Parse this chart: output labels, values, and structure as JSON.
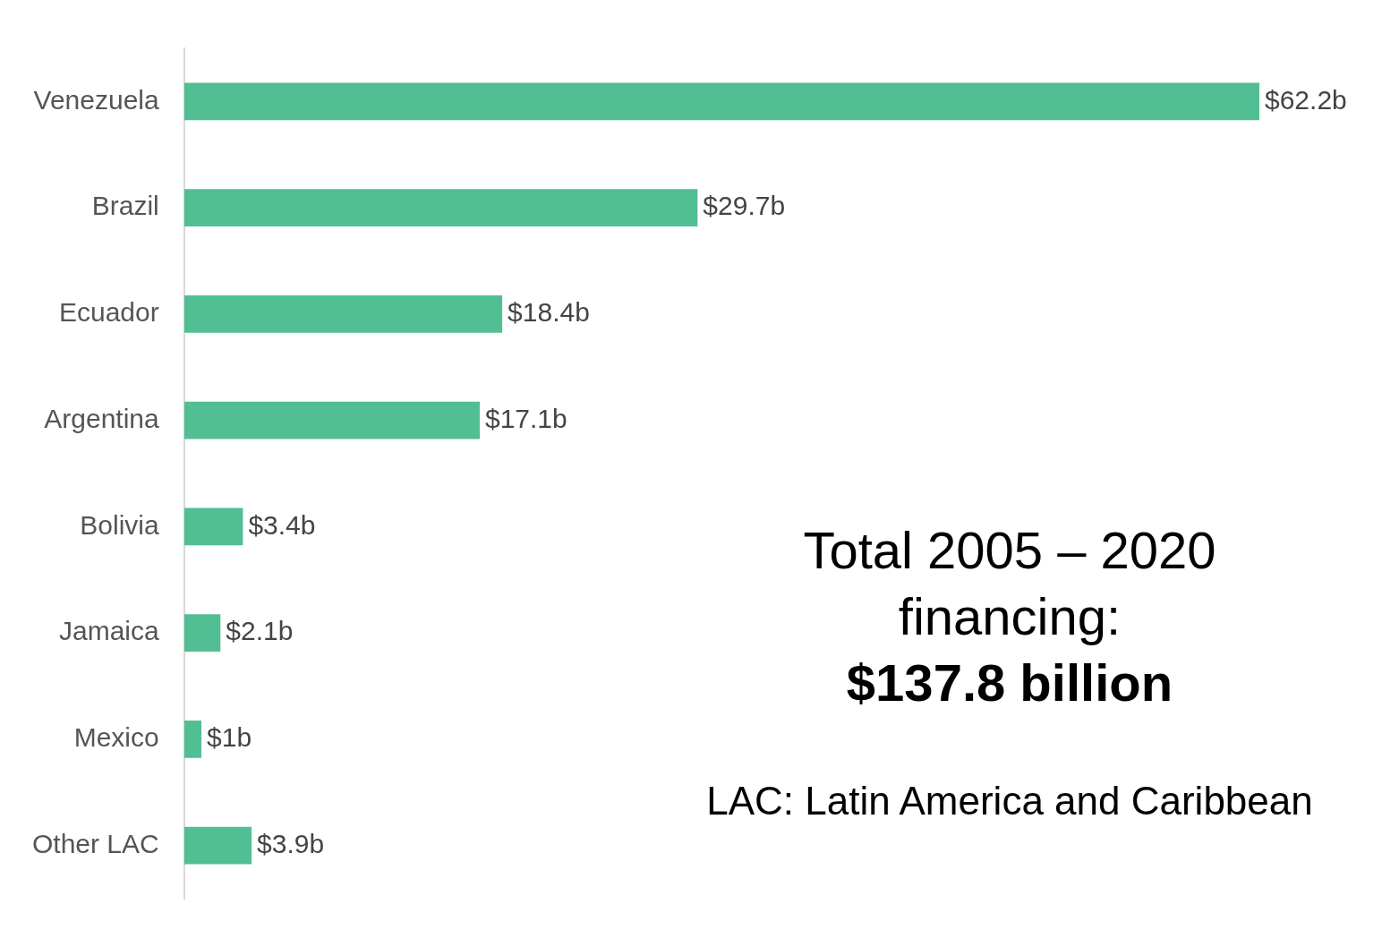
{
  "chart_data": {
    "type": "bar",
    "orientation": "horizontal",
    "categories": [
      "Venezuela",
      "Brazil",
      "Ecuador",
      "Argentina",
      "Bolivia",
      "Jamaica",
      "Mexico",
      "Other LAC"
    ],
    "values": [
      62.2,
      29.7,
      18.4,
      17.1,
      3.4,
      2.1,
      1,
      3.9
    ],
    "value_labels": [
      "$62.2b",
      "$29.7b",
      "$18.4b",
      "$17.1b",
      "$3.4b",
      "$2.1b",
      "$1b",
      "$3.9b"
    ],
    "color": "#52be94",
    "legend": false,
    "tick_labels": "y",
    "annotations": [
      "Total 2005 – 2020 financing:",
      "$137.8 billion",
      "LAC: Latin America and Caribbean"
    ]
  }
}
